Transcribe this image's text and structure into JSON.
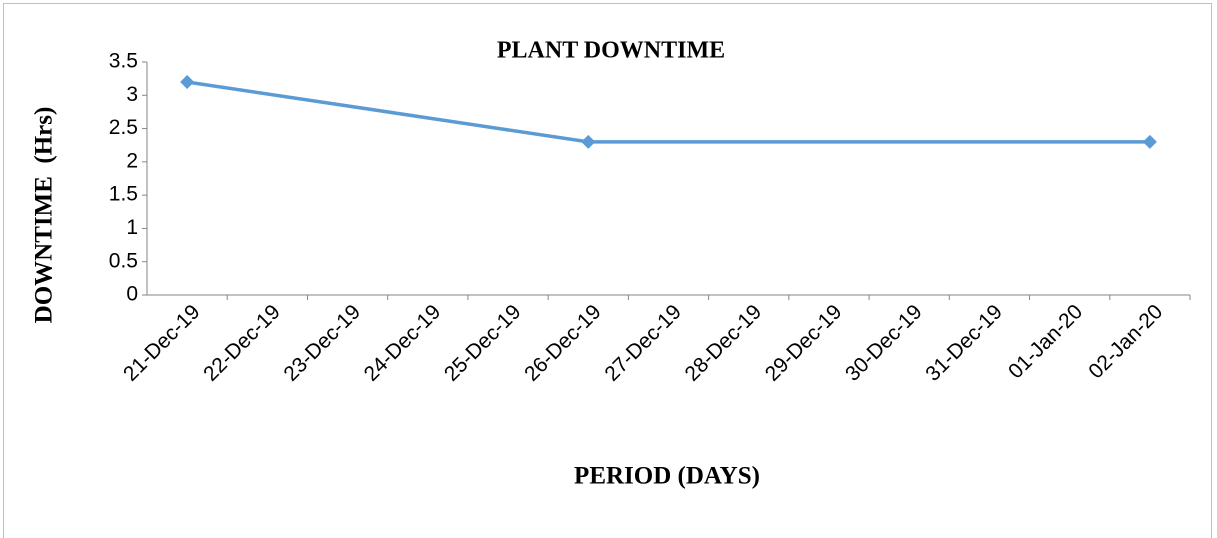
{
  "chart_data": {
    "type": "line",
    "title": "PLANT DOWNTIME",
    "x_label": "PERIOD (DAYS)",
    "y_label": "DOWNTIME  (Hrs)",
    "xticks": [
      "21-Dec-19",
      "22-Dec-19",
      "23-Dec-19",
      "24-Dec-19",
      "25-Dec-19",
      "26-Dec-19",
      "27-Dec-19",
      "28-Dec-19",
      "29-Dec-19",
      "30-Dec-19",
      "31-Dec-19",
      "01-Jan-20",
      "02-Jan-20"
    ],
    "x": [
      "21-Dec-19",
      "26-Dec-19",
      "02-Jan-20"
    ],
    "values": [
      3.2,
      2.3,
      2.3
    ],
    "color": "#5b9bd5",
    "ylim": [
      0,
      3.5
    ],
    "yticks": [
      0,
      0.5,
      1,
      1.5,
      2,
      2.5,
      3,
      3.5
    ],
    "grid": false
  }
}
